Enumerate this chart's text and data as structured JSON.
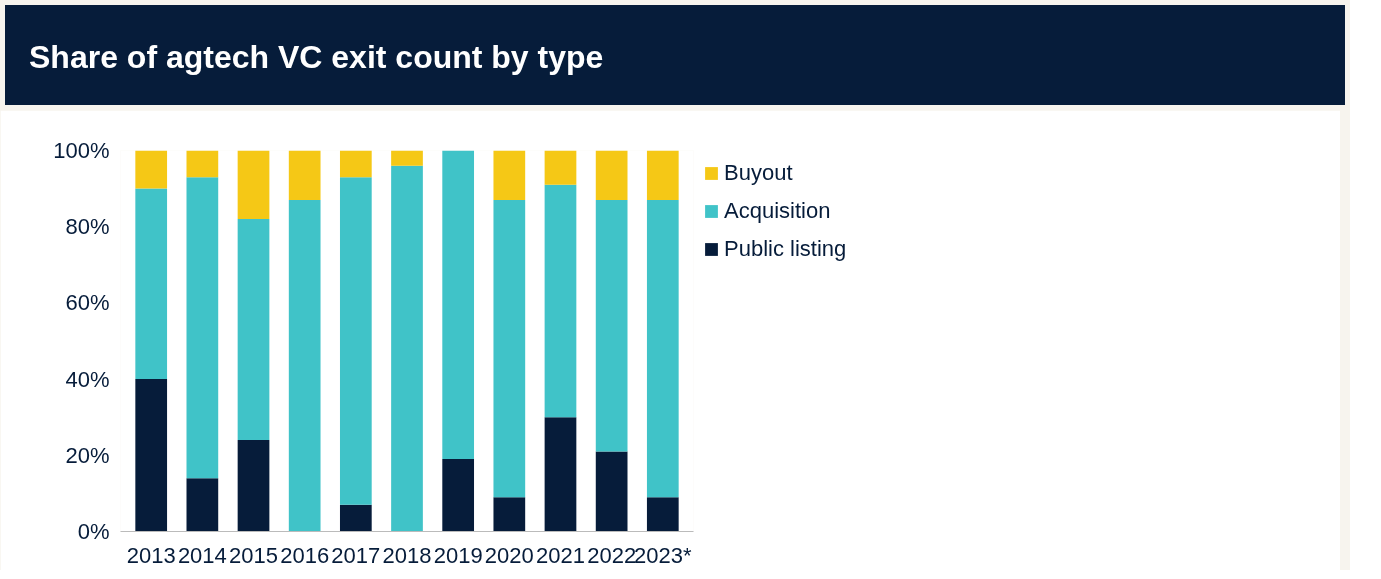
{
  "chart_data": {
    "type": "bar",
    "title": "Share of agtech VC exit count by type",
    "stacked": true,
    "legend": "top right",
    "grid": false,
    "categories": [
      "2013",
      "2014",
      "2015",
      "2016",
      "2017",
      "2018",
      "2019",
      "2020",
      "2021",
      "2022",
      "2023*"
    ],
    "ylim": [
      0,
      100
    ],
    "yticks": [
      {
        "value": 0,
        "label": "0%"
      },
      {
        "value": 20,
        "label": "20%"
      },
      {
        "value": 40,
        "label": "40%"
      },
      {
        "value": 60,
        "label": "60%"
      },
      {
        "value": 80,
        "label": "80%"
      },
      {
        "value": 100,
        "label": "100%"
      }
    ],
    "series": [
      {
        "name": "Public listing",
        "color": "#061c3a",
        "values": [
          40,
          14,
          24,
          0,
          7,
          0,
          19,
          9,
          30,
          21,
          9
        ]
      },
      {
        "name": "Acquisition",
        "color": "#40c3c8",
        "values": [
          50,
          79,
          58,
          87,
          86,
          96,
          81,
          78,
          61,
          66,
          78
        ]
      },
      {
        "name": "Buyout",
        "color": "#f5c816",
        "values": [
          10,
          7,
          18,
          13,
          7,
          4,
          0,
          13,
          9,
          13,
          13
        ]
      }
    ]
  }
}
